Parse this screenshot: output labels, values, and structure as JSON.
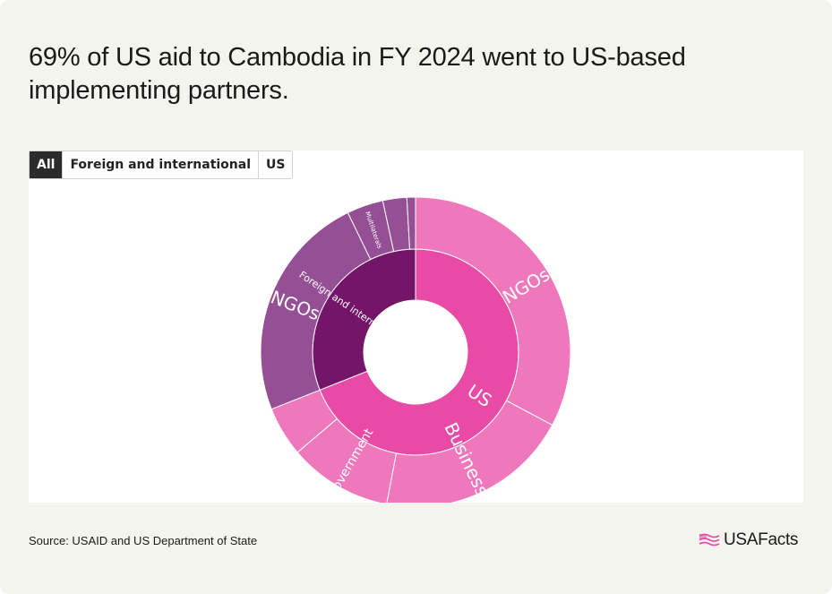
{
  "title": "69% of US aid to Cambodia in FY 2024 went to US-based implementing partners.",
  "tabs": [
    {
      "label": "All",
      "active": true
    },
    {
      "label": "Foreign and international",
      "active": false
    },
    {
      "label": "US",
      "active": false
    }
  ],
  "source": "Source: USAID and US Department of State",
  "logo": {
    "text": "USAFacts"
  },
  "colors": {
    "us_inner": "#e84aa6",
    "us_outer": "#ee78bb",
    "foreign_inner": "#731669",
    "foreign_outer": "#944f95",
    "background_card": "#f4f4ef",
    "logo_flag": "#e84aa6"
  },
  "chart_data": {
    "type": "sunburst",
    "title": "69% of US aid to Cambodia in FY 2024 went to US-based implementing partners.",
    "unit": "share of total",
    "inner_ring": [
      {
        "name": "US",
        "value": 69
      },
      {
        "name": "Foreign and international",
        "value": 31
      }
    ],
    "outer_ring": [
      {
        "parent": "US",
        "name": "NGOs",
        "value": 32.8
      },
      {
        "parent": "US",
        "name": "Businesses",
        "value": 20.2
      },
      {
        "parent": "US",
        "name": "Government",
        "value": 10.8
      },
      {
        "parent": "US",
        "name": "",
        "value": 5.2
      },
      {
        "parent": "Foreign and international",
        "name": "NGOs",
        "value": 23.8
      },
      {
        "parent": "Foreign and international",
        "name": "Multilaterals",
        "value": 3.8
      },
      {
        "parent": "Foreign and international",
        "name": "",
        "value": 2.5
      },
      {
        "parent": "Foreign and international",
        "name": "",
        "value": 0.9
      }
    ]
  }
}
